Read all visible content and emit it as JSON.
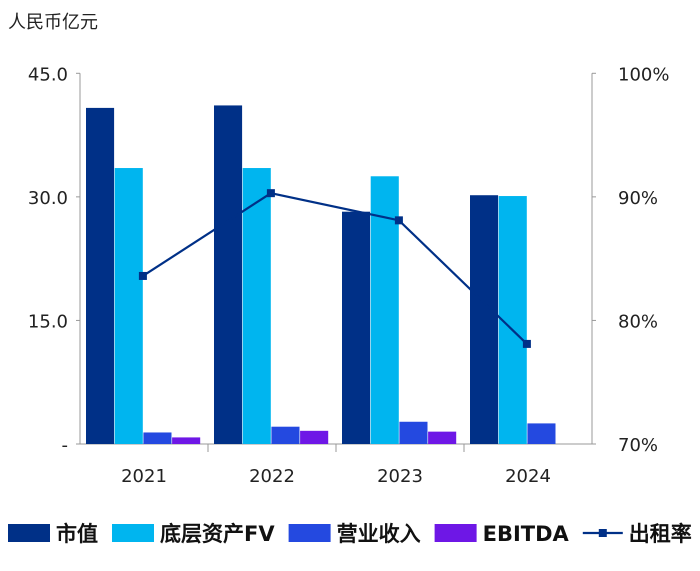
{
  "chart_data": {
    "type": "bar",
    "unit_label": "人民币亿元",
    "categories": [
      "2021",
      "2022",
      "2023",
      "2024"
    ],
    "y_left": {
      "range": [
        0,
        45
      ],
      "ticks": [
        0,
        15,
        30,
        45
      ],
      "tick_labels": [
        "-",
        "15.0",
        "30.0",
        "45.0"
      ]
    },
    "y_right": {
      "range": [
        70,
        100
      ],
      "ticks": [
        70,
        80,
        90,
        100
      ],
      "tick_labels": [
        "70%",
        "80%",
        "90%",
        "100%"
      ]
    },
    "grid": false,
    "legend_position": "bottom",
    "series": [
      {
        "name": "市值",
        "type": "bar",
        "axis": "left",
        "color": "#003087",
        "values": [
          40.8,
          41.1,
          28.2,
          30.2
        ]
      },
      {
        "name": "底层资产FV",
        "type": "bar",
        "axis": "left",
        "color": "#00B5EF",
        "values": [
          33.5,
          33.5,
          32.5,
          30.1
        ]
      },
      {
        "name": "营业收入",
        "type": "bar",
        "axis": "left",
        "color": "#2449E0",
        "values": [
          1.4,
          2.1,
          2.7,
          2.5
        ]
      },
      {
        "name": "EBITDA",
        "type": "bar",
        "axis": "left",
        "color": "#6E17E6",
        "values": [
          0.8,
          1.6,
          1.5,
          null
        ]
      },
      {
        "name": "出租率",
        "type": "line",
        "axis": "right",
        "color": "#003087",
        "values": [
          83.6,
          90.3,
          88.1,
          78.1
        ]
      }
    ]
  }
}
